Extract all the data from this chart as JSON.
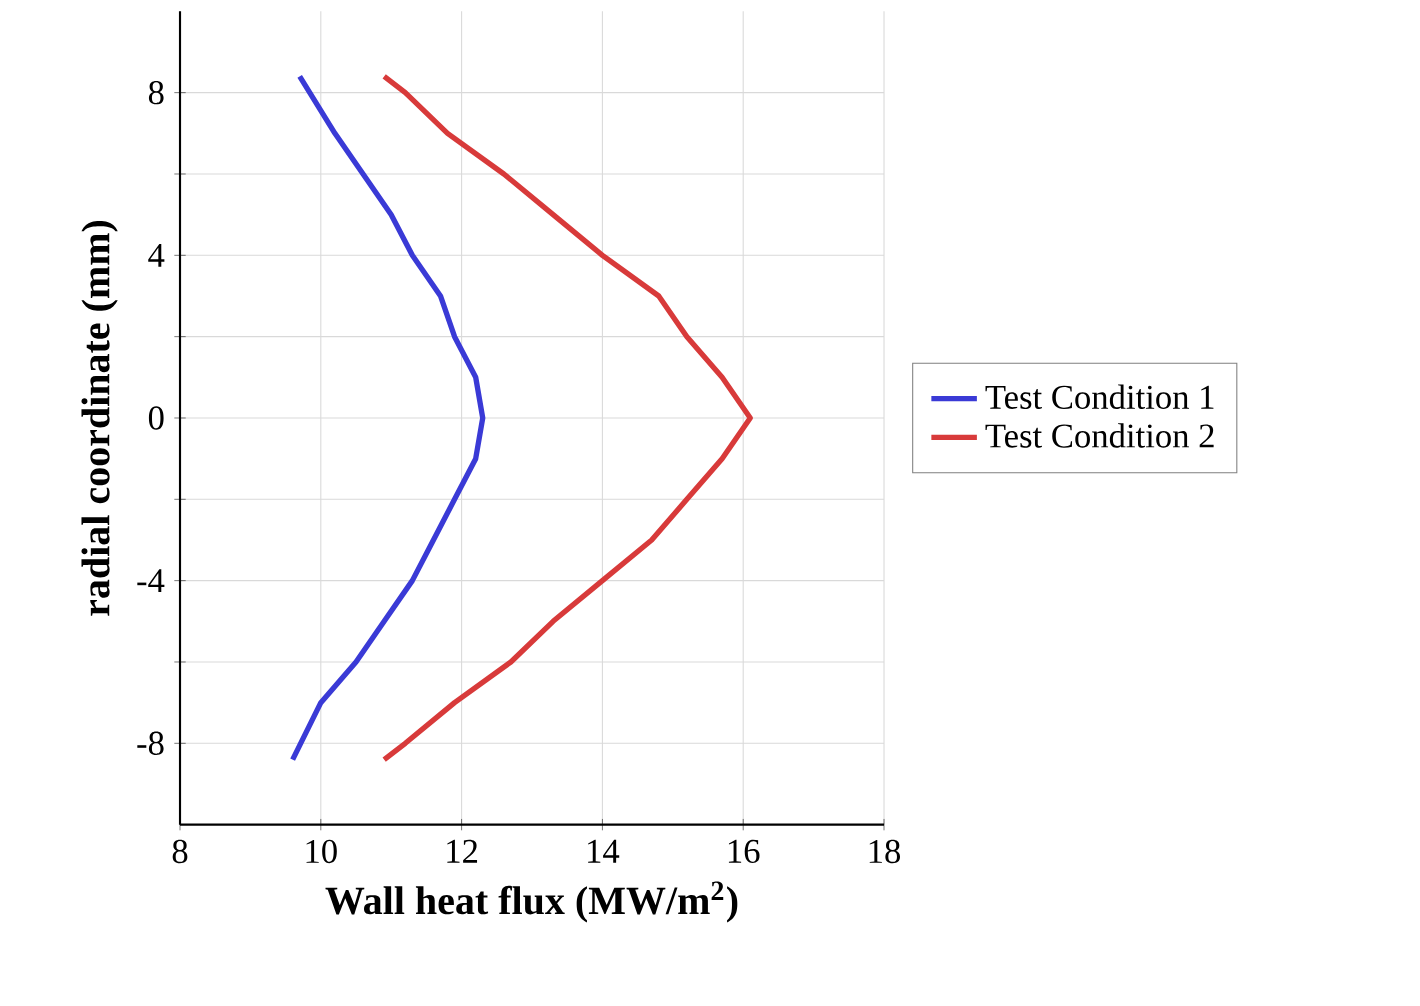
{
  "chart_data": {
    "type": "line",
    "xlabel": "Wall heat flux (MW/m$^{2}$)",
    "ylabel": "radial coordinate (mm)",
    "xlim": [
      8,
      18
    ],
    "xticks": [
      8,
      10,
      12,
      14,
      16,
      18
    ],
    "ylim": [
      -10,
      10
    ],
    "yticks": [
      -8,
      {
        "value": -6,
        "label": null
      },
      -4,
      {
        "value": -2,
        "label": null
      },
      0,
      {
        "value": 2,
        "label": null
      },
      4,
      {
        "value": 6,
        "label": null
      },
      8
    ],
    "grid": true,
    "legend": "right",
    "marker": "none",
    "line_style": "solid",
    "series": [
      {
        "name": "Test Condition 1",
        "color": "#3a3ad6",
        "x": [
          9.7,
          10.2,
          10.6,
          11.0,
          11.3,
          11.7,
          11.9,
          12.2,
          12.3,
          12.2,
          11.9,
          11.6,
          11.3,
          10.9,
          10.5,
          10.0,
          9.6
        ],
        "values": [
          8.4,
          7,
          6,
          5,
          4,
          3,
          2,
          1,
          0,
          -1,
          -2,
          -3,
          -4,
          -5,
          -6,
          -7,
          -8.4
        ]
      },
      {
        "name": "Test Condition 2",
        "color": "#d83a3a",
        "x": [
          10.9,
          11.2,
          11.8,
          12.6,
          13.3,
          14.0,
          14.8,
          15.2,
          15.7,
          16.1,
          15.7,
          15.2,
          14.7,
          14.0,
          13.3,
          12.7,
          11.9,
          11.2,
          10.9
        ],
        "values": [
          8.4,
          8,
          7,
          6,
          5,
          4,
          3,
          2,
          1,
          0,
          -1,
          -2,
          -3,
          -4,
          -5,
          -6,
          -7,
          -8,
          -8.4
        ]
      }
    ]
  }
}
